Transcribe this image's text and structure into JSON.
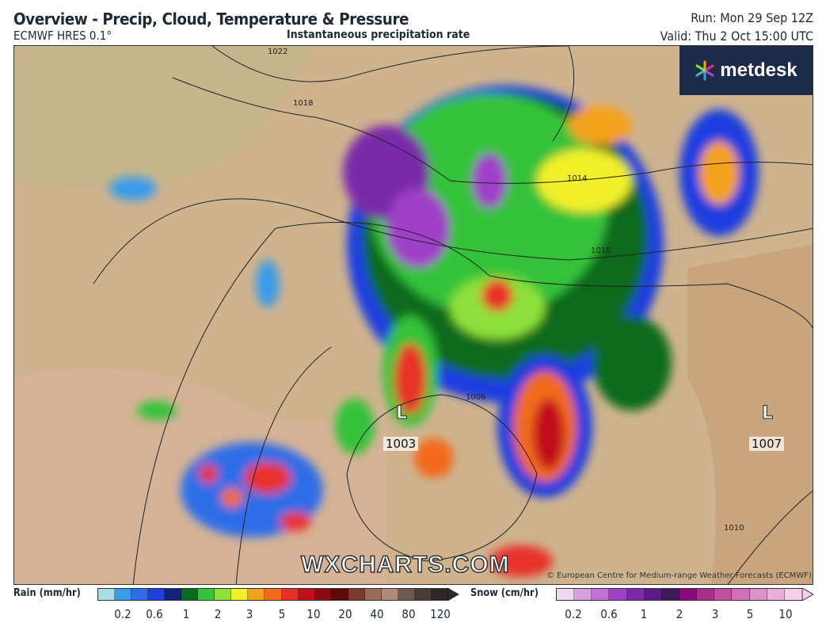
{
  "header": {
    "title": "Overview - Precip, Cloud, Temperature & Pressure",
    "model": "ECMWF HRES 0.1°",
    "product": "Instantaneous precipitation rate",
    "run": "Run: Mon 29 Sep 12Z",
    "valid": "Valid: Thu 2 Oct 15:00 UTC"
  },
  "branding": {
    "logo": "metdesk",
    "watermark": "WXCHARTS.COM",
    "copyright": "© European Centre for Medium-range Weather Forecasts (ECMWF)"
  },
  "map": {
    "isobar_labels": [
      "1022",
      "1018",
      "1014",
      "1010",
      "1006",
      "1010"
    ],
    "lows": [
      {
        "symbol": "L",
        "pressure": "1003"
      },
      {
        "symbol": "L",
        "pressure": "1007"
      }
    ]
  },
  "legend": {
    "rain": {
      "label": "Rain (mm/hr)",
      "ticks": [
        "0.2",
        "0.6",
        "1",
        "2",
        "3",
        "5",
        "10",
        "20",
        "40",
        "80",
        "120"
      ],
      "colors": [
        "#a8dce6",
        "#3a9be8",
        "#2f6de8",
        "#1f3ee0",
        "#14237a",
        "#0a6b1e",
        "#36c23a",
        "#8ee03a",
        "#f2f02a",
        "#f5a21e",
        "#f26a1e",
        "#e8302a",
        "#c0101a",
        "#8a0a12",
        "#5e0a0a",
        "#7a3a30",
        "#9a6a5a",
        "#b08a78",
        "#6e5a50",
        "#4a3c36",
        "#2e2828"
      ]
    },
    "snow": {
      "label": "Snow (cm/hr)",
      "ticks": [
        "0.2",
        "0.6",
        "1",
        "2",
        "3",
        "5",
        "10"
      ],
      "colors": [
        "#f0d8f0",
        "#d8a0e0",
        "#c070d8",
        "#a040c8",
        "#7a2aa8",
        "#5a1a88",
        "#3e1a5a",
        "#8a0a7a",
        "#a8308a",
        "#c050a0",
        "#d070b8",
        "#e090c8",
        "#eab0dc",
        "#f2d0ea"
      ]
    }
  }
}
